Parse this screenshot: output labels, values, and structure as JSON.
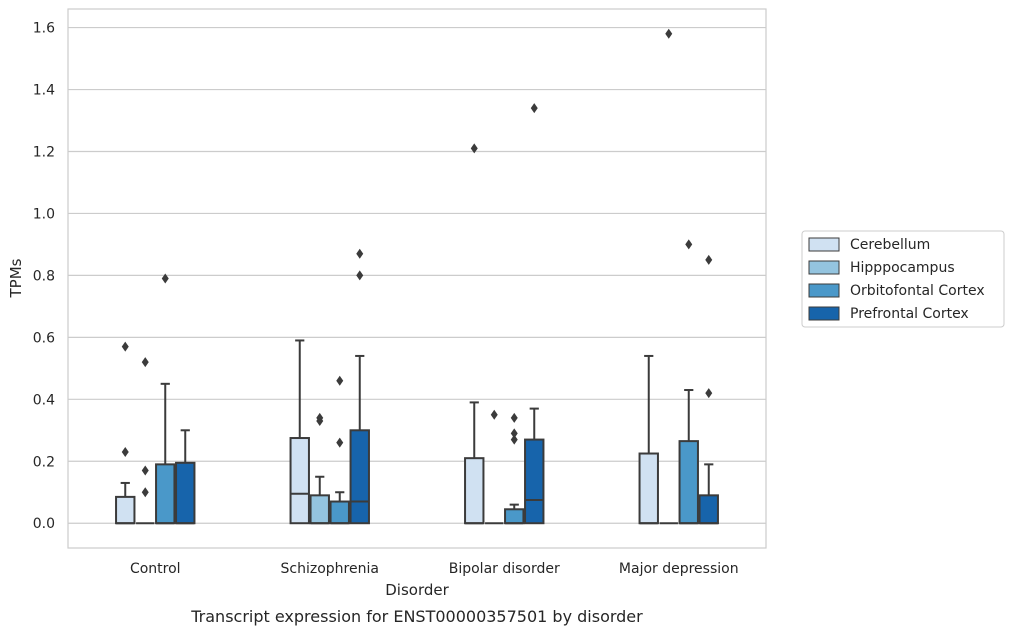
{
  "chart_data": {
    "type": "box",
    "title": "",
    "caption": "Transcript expression for ENST00000357501 by disorder",
    "xlabel": "Disorder",
    "ylabel": "TPMs",
    "ylim": [
      -0.08,
      1.66
    ],
    "yticks": [
      0.0,
      0.2,
      0.4,
      0.6,
      0.8,
      1.0,
      1.2,
      1.4,
      1.6
    ],
    "grid": "horizontal",
    "legend_position": "right",
    "categories": [
      "Control",
      "Schizophrenia",
      "Bipolar disorder",
      "Major depression"
    ],
    "series": [
      {
        "name": "Cerebellum",
        "color": "#d0e1f2",
        "boxes": [
          {
            "q1": 0.0,
            "median": 0.0,
            "q3": 0.085,
            "whisker_low": 0.0,
            "whisker_high": 0.13,
            "outliers": [
              0.23,
              0.57
            ]
          },
          {
            "q1": 0.0,
            "median": 0.095,
            "q3": 0.275,
            "whisker_low": 0.0,
            "whisker_high": 0.59,
            "outliers": []
          },
          {
            "q1": 0.0,
            "median": 0.0,
            "q3": 0.21,
            "whisker_low": 0.0,
            "whisker_high": 0.39,
            "outliers": [
              1.21
            ]
          },
          {
            "q1": 0.0,
            "median": 0.0,
            "q3": 0.225,
            "whisker_low": 0.0,
            "whisker_high": 0.54,
            "outliers": []
          }
        ]
      },
      {
        "name": "Hipppocampus",
        "color": "#94c4df",
        "boxes": [
          {
            "q1": 0.0,
            "median": 0.0,
            "q3": 0.0,
            "whisker_low": 0.0,
            "whisker_high": 0.0,
            "outliers": [
              0.1,
              0.17,
              0.52
            ]
          },
          {
            "q1": 0.0,
            "median": 0.0,
            "q3": 0.09,
            "whisker_low": 0.0,
            "whisker_high": 0.15,
            "outliers": [
              0.33,
              0.34
            ]
          },
          {
            "q1": 0.0,
            "median": 0.0,
            "q3": 0.0,
            "whisker_low": 0.0,
            "whisker_high": 0.0,
            "outliers": [
              0.35
            ]
          },
          {
            "q1": 0.0,
            "median": 0.0,
            "q3": 0.0,
            "whisker_low": 0.0,
            "whisker_high": 0.0,
            "outliers": [
              1.58
            ]
          }
        ]
      },
      {
        "name": "Orbitofontal Cortex",
        "color": "#4a98c9",
        "boxes": [
          {
            "q1": 0.0,
            "median": 0.0,
            "q3": 0.19,
            "whisker_low": 0.0,
            "whisker_high": 0.45,
            "outliers": [
              0.79
            ]
          },
          {
            "q1": 0.0,
            "median": 0.0,
            "q3": 0.07,
            "whisker_low": 0.0,
            "whisker_high": 0.1,
            "outliers": [
              0.26,
              0.46
            ]
          },
          {
            "q1": 0.0,
            "median": 0.0,
            "q3": 0.045,
            "whisker_low": 0.0,
            "whisker_high": 0.06,
            "outliers": [
              0.27,
              0.29,
              0.34
            ]
          },
          {
            "q1": 0.0,
            "median": 0.0,
            "q3": 0.265,
            "whisker_low": 0.0,
            "whisker_high": 0.43,
            "outliers": [
              0.9
            ]
          }
        ]
      },
      {
        "name": "Prefrontal Cortex",
        "color": "#1764ab",
        "boxes": [
          {
            "q1": 0.0,
            "median": 0.0,
            "q3": 0.195,
            "whisker_low": 0.0,
            "whisker_high": 0.3,
            "outliers": []
          },
          {
            "q1": 0.0,
            "median": 0.07,
            "q3": 0.3,
            "whisker_low": 0.0,
            "whisker_high": 0.54,
            "outliers": [
              0.8,
              0.87
            ]
          },
          {
            "q1": 0.0,
            "median": 0.075,
            "q3": 0.27,
            "whisker_low": 0.0,
            "whisker_high": 0.37,
            "outliers": [
              1.34
            ]
          },
          {
            "q1": 0.0,
            "median": 0.0,
            "q3": 0.09,
            "whisker_low": 0.0,
            "whisker_high": 0.19,
            "outliers": [
              0.42,
              0.85
            ]
          }
        ]
      }
    ]
  }
}
